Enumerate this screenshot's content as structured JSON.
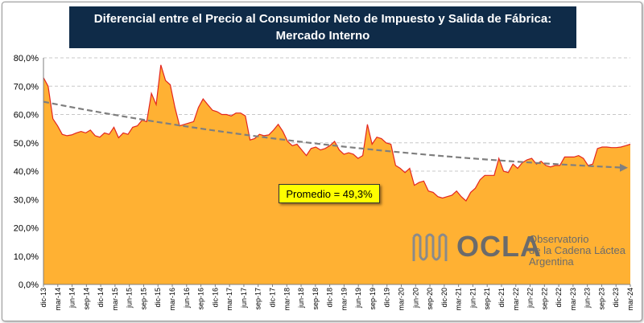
{
  "title": {
    "line1": "Diferencial entre el Precio al Consumidor Neto de Impuesto y Salida de Fábrica:",
    "line2": "Mercado Interno"
  },
  "annotation": "Promedio = 49,3%",
  "logo": {
    "word": "OCLA",
    "line1": "Observatorio",
    "line2": "de la Cadena Láctea",
    "line3": "Argentina"
  },
  "colors": {
    "area_fill": "#ffb133",
    "area_line": "#e3261f",
    "trend_line": "#7f7f7f",
    "title_bg": "#0f2b48",
    "annotation_bg": "#ffff00"
  },
  "chart_data": {
    "type": "area",
    "ylim": [
      0,
      80
    ],
    "y_ticks": [
      "0,0%",
      "10,0%",
      "20,0%",
      "30,0%",
      "40,0%",
      "50,0%",
      "60,0%",
      "70,0%",
      "80,0%"
    ],
    "x_ticks": [
      "dic-13",
      "mar-14",
      "jun-14",
      "sep-14",
      "dic-14",
      "mar-15",
      "jun-15",
      "sep-15",
      "dic-15",
      "mar-16",
      "jun-16",
      "sep-16",
      "dic-16",
      "mar-17",
      "jun-17",
      "sep-17",
      "dic-17",
      "mar-18",
      "jun-18",
      "sep-18",
      "dic-18",
      "mar-19",
      "jun-19",
      "sep-19",
      "dic-19",
      "mar-20",
      "jun-20",
      "sep-20",
      "dic-20",
      "mar-21",
      "jun-21",
      "sep-21",
      "dic-21",
      "mar-22",
      "jun-22",
      "sep-22",
      "dic-22",
      "mar-23",
      "jun-23",
      "sep-23",
      "dic-23",
      "mar-24"
    ],
    "series": [
      {
        "values": [
          73.0,
          70.0,
          58.5,
          56.0,
          53.0,
          52.5,
          52.8,
          53.5,
          54.0,
          53.5,
          54.5,
          52.5,
          52.0,
          53.5,
          53.0,
          55.5,
          51.8,
          53.5,
          53.0,
          55.5,
          56.0,
          58.0,
          57.5,
          67.5,
          63.5,
          77.5,
          72.0,
          70.5,
          62.5,
          56.0,
          56.5,
          57.0,
          57.5,
          62.5,
          65.5,
          63.5,
          61.5,
          61.0,
          60.0,
          60.0,
          59.5,
          60.5,
          60.5,
          59.5,
          51.0,
          51.5,
          53.0,
          52.5,
          52.8,
          54.5,
          56.5,
          54.0,
          50.5,
          49.0,
          49.5,
          47.5,
          45.5,
          48.0,
          48.5,
          47.5,
          48.0,
          49.0,
          50.5,
          47.5,
          46.0,
          46.5,
          46.0,
          44.5,
          45.5,
          56.5,
          49.5,
          52.0,
          51.5,
          50.0,
          49.5,
          42.0,
          41.0,
          39.5,
          41.0,
          35.0,
          36.0,
          36.5,
          33.0,
          32.5,
          31.0,
          30.5,
          31.0,
          31.5,
          33.0,
          31.0,
          29.5,
          32.5,
          34.0,
          37.0,
          38.5,
          38.5,
          38.5,
          44.5,
          40.0,
          39.5,
          42.5,
          41.0,
          43.0,
          44.0,
          44.5,
          42.5,
          43.5,
          42.0,
          41.5,
          42.0,
          42.0,
          45.0,
          45.0,
          45.0,
          45.5,
          44.5,
          42.0,
          42.5,
          48.0,
          48.5,
          48.5,
          48.3,
          48.3,
          48.5,
          49.0,
          49.5
        ]
      },
      {
        "values": [
          64.5,
          41.2
        ]
      }
    ],
    "grid": true,
    "legend": "none"
  }
}
